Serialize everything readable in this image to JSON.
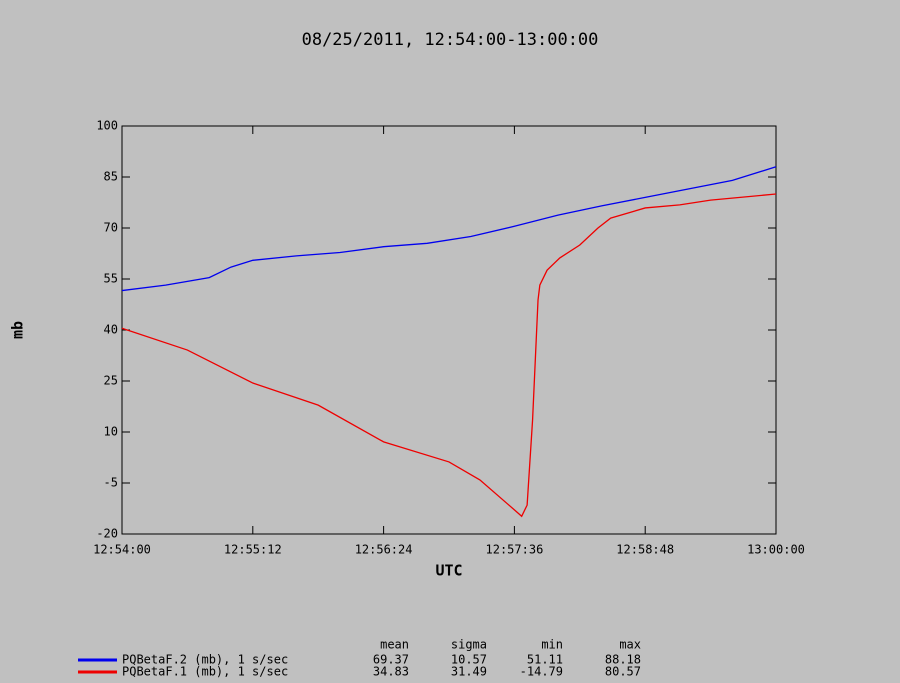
{
  "chart_data": {
    "type": "line",
    "title": "08/25/2011, 12:54:00-13:00:00",
    "x_label": "UTC",
    "y_label": "mb",
    "xlim": [
      "12:54:00",
      "13:00:00"
    ],
    "xticks": [
      "12:54:00",
      "12:55:12",
      "12:56:24",
      "12:57:36",
      "12:58:48",
      "13:00:00"
    ],
    "ylim": [
      -20,
      100
    ],
    "yticks": [
      -20,
      -5,
      10,
      25,
      40,
      55,
      70,
      85,
      100
    ],
    "series": [
      {
        "name": "PQBetaF.2 (mb), 1 s/sec",
        "color": "#0000ee",
        "x": [
          "12:54:00",
          "12:54:24",
          "12:54:48",
          "12:55:00",
          "12:55:12",
          "12:55:36",
          "12:56:00",
          "12:56:24",
          "12:56:48",
          "12:57:12",
          "12:57:36",
          "12:58:00",
          "12:58:24",
          "12:58:48",
          "12:59:12",
          "12:59:36",
          "13:00:00"
        ],
        "values": [
          51.6,
          53.2,
          55.4,
          58.5,
          60.5,
          61.8,
          62.8,
          64.5,
          65.5,
          67.5,
          70.5,
          73.8,
          76.5,
          79,
          81.5,
          84,
          88
        ]
      },
      {
        "name": "PQBetaF.1 (mb), 1 s/sec",
        "color": "#ee0000",
        "x": [
          "12:54:00",
          "12:54:36",
          "12:55:12",
          "12:55:48",
          "12:56:24",
          "12:57:00",
          "12:57:17",
          "12:57:36",
          "12:57:40",
          "12:57:43",
          "12:57:46",
          "12:57:49",
          "12:57:50",
          "12:57:54",
          "12:58:01",
          "12:58:12",
          "12:58:22",
          "12:58:29",
          "12:58:48",
          "12:59:07",
          "12:59:24",
          "13:00:00"
        ],
        "values": [
          40.5,
          34.1,
          24.4,
          17.9,
          7.1,
          1.2,
          -4.1,
          -12.9,
          -14.79,
          -11.5,
          13.5,
          48.8,
          53.2,
          57.6,
          61.2,
          65,
          70,
          72.9,
          75.9,
          76.8,
          78.2,
          80
        ]
      }
    ],
    "stats": {
      "columns": [
        "mean",
        "sigma",
        "min",
        "max"
      ],
      "rows": [
        [
          69.37,
          10.57,
          51.11,
          88.18
        ],
        [
          34.83,
          31.49,
          -14.79,
          80.57
        ]
      ]
    }
  }
}
